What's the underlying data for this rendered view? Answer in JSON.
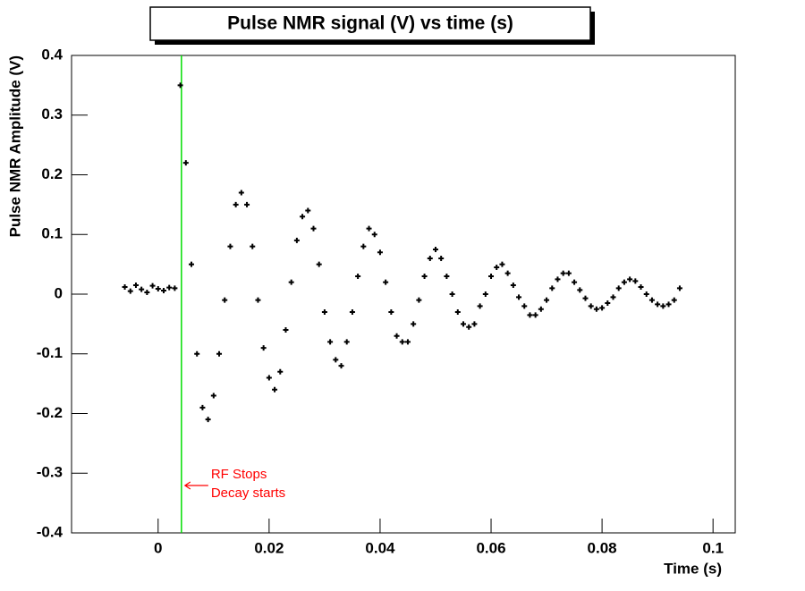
{
  "chart_data": {
    "type": "scatter",
    "title": "Pulse NMR signal (V) vs time (s)",
    "x_label": "Time (s)",
    "y_label": "Pulse NMR Amplitude (V)",
    "x": [
      -0.006,
      -0.005,
      -0.004,
      -0.003,
      -0.002,
      -0.001,
      0,
      0.001,
      0.002,
      0.003,
      0.004,
      0.005,
      0.006,
      0.007,
      0.008,
      0.009,
      0.01,
      0.011,
      0.012,
      0.013,
      0.014,
      0.015,
      0.016,
      0.017,
      0.018,
      0.019,
      0.02,
      0.021,
      0.022,
      0.023,
      0.024,
      0.025,
      0.026,
      0.027,
      0.028,
      0.029,
      0.03,
      0.031,
      0.032,
      0.033,
      0.034,
      0.035,
      0.036,
      0.037,
      0.038,
      0.039,
      0.04,
      0.041,
      0.042,
      0.043,
      0.044,
      0.045,
      0.046,
      0.047,
      0.048,
      0.049,
      0.05,
      0.051,
      0.052,
      0.053,
      0.054,
      0.055,
      0.056,
      0.057,
      0.058,
      0.059,
      0.06,
      0.061,
      0.062,
      0.063,
      0.064,
      0.065,
      0.066,
      0.067,
      0.068,
      0.069,
      0.07,
      0.071,
      0.072,
      0.073,
      0.074,
      0.075,
      0.076,
      0.077,
      0.078,
      0.079,
      0.08,
      0.081,
      0.082,
      0.083,
      0.084,
      0.085,
      0.086,
      0.087,
      0.088,
      0.089,
      0.09,
      0.091,
      0.092,
      0.093,
      0.094
    ],
    "series": [
      {
        "name": "Pulse NMR signal",
        "color": "#000000",
        "values": [
          0.012,
          0.005,
          0.015,
          0.008,
          0.003,
          0.014,
          0.009,
          0.006,
          0.011,
          0.01,
          0.35,
          0.22,
          0.05,
          -0.1,
          -0.19,
          -0.21,
          -0.17,
          -0.1,
          -0.01,
          0.08,
          0.15,
          0.17,
          0.15,
          0.08,
          -0.01,
          -0.09,
          -0.14,
          -0.16,
          -0.13,
          -0.06,
          0.02,
          0.09,
          0.13,
          0.14,
          0.11,
          0.05,
          -0.03,
          -0.08,
          -0.11,
          -0.12,
          -0.08,
          -0.03,
          0.03,
          0.08,
          0.11,
          0.1,
          0.07,
          0.02,
          -0.03,
          -0.07,
          -0.08,
          -0.08,
          -0.05,
          -0.01,
          0.03,
          0.06,
          0.075,
          0.06,
          0.03,
          0,
          -0.03,
          -0.05,
          -0.055,
          -0.05,
          -0.02,
          0,
          0.03,
          0.045,
          0.05,
          0.035,
          0.015,
          -0.005,
          -0.02,
          -0.035,
          -0.035,
          -0.025,
          -0.01,
          0.01,
          0.025,
          0.035,
          0.035,
          0.02,
          0.007,
          -0.007,
          -0.02,
          -0.025,
          -0.023,
          -0.015,
          -0.005,
          0.01,
          0.02,
          0.025,
          0.022,
          0.012,
          0,
          -0.01,
          -0.017,
          -0.02,
          -0.017,
          -0.01,
          0.01
        ]
      }
    ],
    "xlim": [
      -0.0156,
      0.104
    ],
    "ylim": [
      -0.4,
      0.4
    ],
    "xticks": [
      0,
      0.02,
      0.04,
      0.06,
      0.08,
      0.1
    ],
    "yticks": [
      -0.4,
      -0.3,
      -0.2,
      -0.1,
      0,
      0.1,
      0.2,
      0.3,
      0.4
    ],
    "marker_line": {
      "x": 0.0042,
      "color": "#00dd00"
    },
    "annotation": {
      "lines": [
        "RF  Stops",
        "Decay starts"
      ],
      "color": "#ff0000"
    }
  }
}
